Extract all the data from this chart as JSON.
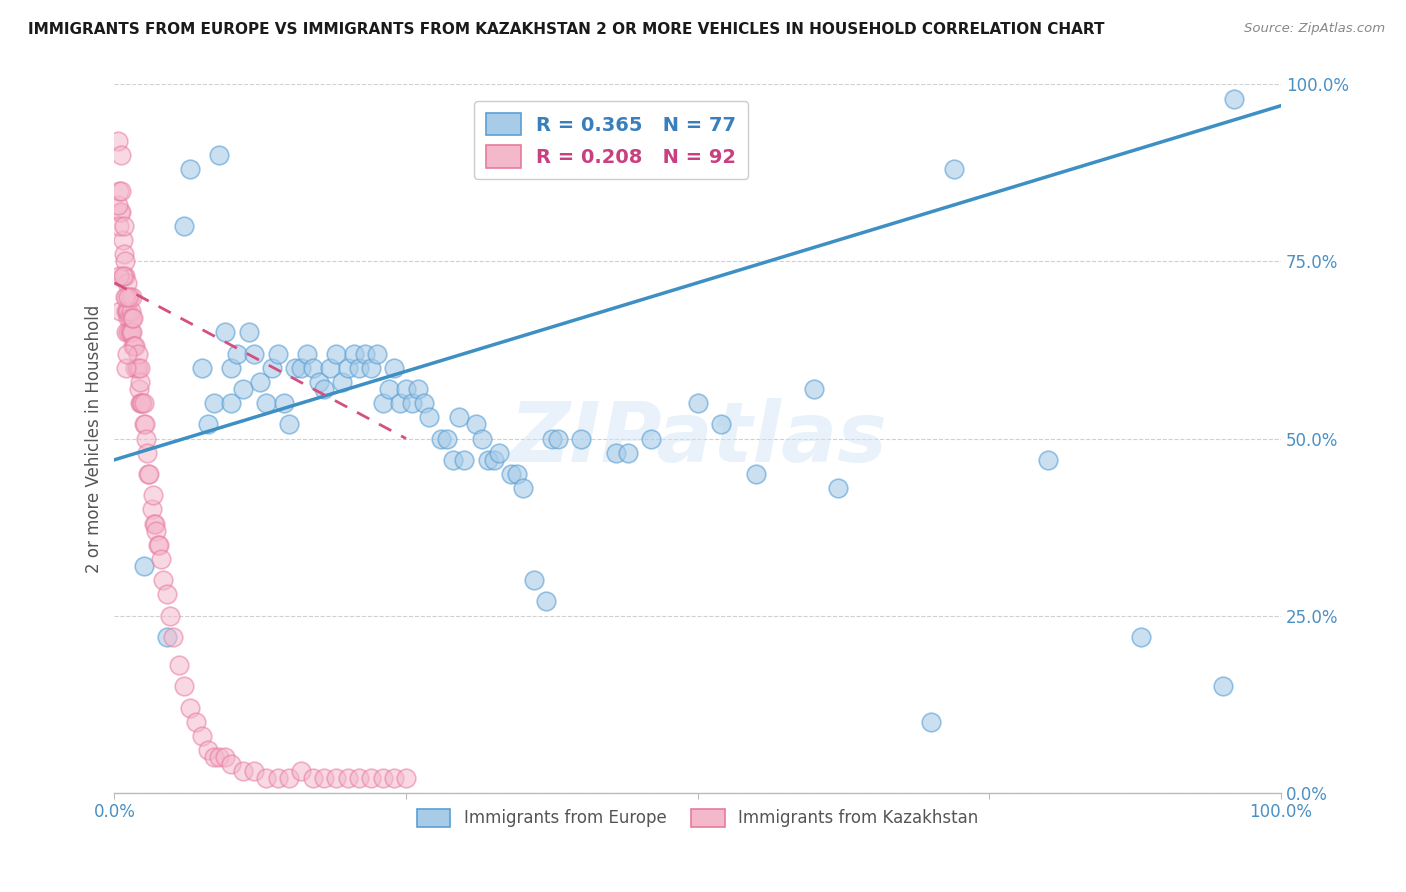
{
  "title": "IMMIGRANTS FROM EUROPE VS IMMIGRANTS FROM KAZAKHSTAN 2 OR MORE VEHICLES IN HOUSEHOLD CORRELATION CHART",
  "source": "Source: ZipAtlas.com",
  "ylabel": "2 or more Vehicles in Household",
  "xlim": [
    0.0,
    1.0
  ],
  "ylim": [
    0.0,
    1.0
  ],
  "ytick_labels": [
    "0.0%",
    "25.0%",
    "50.0%",
    "75.0%",
    "100.0%"
  ],
  "ytick_vals": [
    0.0,
    0.25,
    0.5,
    0.75,
    1.0
  ],
  "grid_color": "#d0d0d0",
  "background_color": "#ffffff",
  "watermark_text": "ZIPatlas",
  "blue_R": 0.365,
  "blue_N": 77,
  "pink_R": 0.208,
  "pink_N": 92,
  "blue_color": "#a8cce8",
  "pink_color": "#f4b8cb",
  "blue_edge_color": "#5a9fd4",
  "pink_edge_color": "#e87aa0",
  "blue_line_color": "#3d8fc4",
  "pink_line_color": "#d45080",
  "blue_legend_text_color": "#3a7fbd",
  "pink_legend_text_color": "#c84080",
  "blue_points_x": [
    0.025,
    0.045,
    0.06,
    0.065,
    0.075,
    0.08,
    0.085,
    0.09,
    0.095,
    0.1,
    0.1,
    0.105,
    0.11,
    0.115,
    0.12,
    0.125,
    0.13,
    0.135,
    0.14,
    0.145,
    0.15,
    0.155,
    0.16,
    0.165,
    0.17,
    0.175,
    0.18,
    0.185,
    0.19,
    0.195,
    0.2,
    0.205,
    0.21,
    0.215,
    0.22,
    0.225,
    0.23,
    0.235,
    0.24,
    0.245,
    0.25,
    0.255,
    0.26,
    0.265,
    0.27,
    0.28,
    0.285,
    0.29,
    0.295,
    0.3,
    0.31,
    0.315,
    0.32,
    0.325,
    0.33,
    0.34,
    0.345,
    0.35,
    0.36,
    0.37,
    0.375,
    0.38,
    0.4,
    0.43,
    0.44,
    0.46,
    0.5,
    0.52,
    0.55,
    0.6,
    0.62,
    0.7,
    0.72,
    0.8,
    0.88,
    0.95,
    0.96
  ],
  "blue_points_y": [
    0.32,
    0.22,
    0.8,
    0.88,
    0.6,
    0.52,
    0.55,
    0.9,
    0.65,
    0.6,
    0.55,
    0.62,
    0.57,
    0.65,
    0.62,
    0.58,
    0.55,
    0.6,
    0.62,
    0.55,
    0.52,
    0.6,
    0.6,
    0.62,
    0.6,
    0.58,
    0.57,
    0.6,
    0.62,
    0.58,
    0.6,
    0.62,
    0.6,
    0.62,
    0.6,
    0.62,
    0.55,
    0.57,
    0.6,
    0.55,
    0.57,
    0.55,
    0.57,
    0.55,
    0.53,
    0.5,
    0.5,
    0.47,
    0.53,
    0.47,
    0.52,
    0.5,
    0.47,
    0.47,
    0.48,
    0.45,
    0.45,
    0.43,
    0.3,
    0.27,
    0.5,
    0.5,
    0.5,
    0.48,
    0.48,
    0.5,
    0.55,
    0.52,
    0.45,
    0.57,
    0.43,
    0.1,
    0.88,
    0.47,
    0.22,
    0.15,
    0.98
  ],
  "pink_points_x": [
    0.005,
    0.005,
    0.006,
    0.007,
    0.008,
    0.008,
    0.009,
    0.009,
    0.01,
    0.01,
    0.01,
    0.011,
    0.011,
    0.012,
    0.012,
    0.012,
    0.013,
    0.013,
    0.013,
    0.014,
    0.014,
    0.015,
    0.015,
    0.015,
    0.016,
    0.016,
    0.017,
    0.018,
    0.018,
    0.019,
    0.02,
    0.02,
    0.021,
    0.022,
    0.022,
    0.022,
    0.023,
    0.024,
    0.025,
    0.025,
    0.026,
    0.027,
    0.028,
    0.029,
    0.03,
    0.032,
    0.033,
    0.034,
    0.035,
    0.036,
    0.037,
    0.038,
    0.04,
    0.042,
    0.045,
    0.048,
    0.05,
    0.055,
    0.06,
    0.065,
    0.07,
    0.075,
    0.08,
    0.085,
    0.09,
    0.095,
    0.1,
    0.11,
    0.12,
    0.13,
    0.14,
    0.15,
    0.16,
    0.17,
    0.18,
    0.19,
    0.2,
    0.21,
    0.22,
    0.23,
    0.24,
    0.25,
    0.003,
    0.003,
    0.004,
    0.004,
    0.004,
    0.006,
    0.006,
    0.007,
    0.008,
    0.009,
    0.01,
    0.011,
    0.012
  ],
  "pink_points_y": [
    0.68,
    0.82,
    0.82,
    0.78,
    0.73,
    0.76,
    0.73,
    0.75,
    0.68,
    0.7,
    0.65,
    0.68,
    0.72,
    0.67,
    0.68,
    0.65,
    0.67,
    0.65,
    0.7,
    0.65,
    0.68,
    0.65,
    0.67,
    0.7,
    0.63,
    0.67,
    0.63,
    0.6,
    0.63,
    0.6,
    0.6,
    0.62,
    0.57,
    0.55,
    0.58,
    0.6,
    0.55,
    0.55,
    0.55,
    0.52,
    0.52,
    0.5,
    0.48,
    0.45,
    0.45,
    0.4,
    0.42,
    0.38,
    0.38,
    0.37,
    0.35,
    0.35,
    0.33,
    0.3,
    0.28,
    0.25,
    0.22,
    0.18,
    0.15,
    0.12,
    0.1,
    0.08,
    0.06,
    0.05,
    0.05,
    0.05,
    0.04,
    0.03,
    0.03,
    0.02,
    0.02,
    0.02,
    0.03,
    0.02,
    0.02,
    0.02,
    0.02,
    0.02,
    0.02,
    0.02,
    0.02,
    0.02,
    0.92,
    0.83,
    0.85,
    0.8,
    0.73,
    0.9,
    0.85,
    0.73,
    0.8,
    0.7,
    0.6,
    0.62,
    0.7
  ],
  "blue_trend_x0": 0.0,
  "blue_trend_x1": 1.0,
  "blue_trend_y0": 0.47,
  "blue_trend_y1": 0.97,
  "pink_trend_x0": 0.0,
  "pink_trend_x1": 0.25,
  "pink_trend_y0": 0.72,
  "pink_trend_y1": 0.5
}
